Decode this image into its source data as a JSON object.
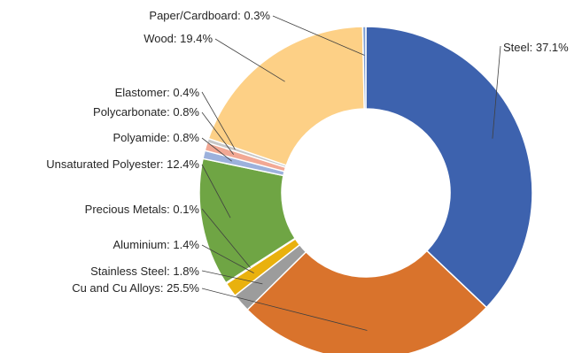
{
  "chart_data": {
    "type": "pie",
    "variant": "donut",
    "start_angle_deg": 0,
    "direction": "clockwise",
    "legend": "none",
    "slices": [
      {
        "label": "Steel",
        "value": 37.1,
        "text": "Steel: 37.1%",
        "color": "#3D62AE"
      },
      {
        "label": "Cu and Cu Alloys",
        "value": 25.5,
        "text": "Cu and Cu Alloys: 25.5%",
        "color": "#D9732C"
      },
      {
        "label": "Stainless Steel",
        "value": 1.8,
        "text": "Stainless Steel: 1.8%",
        "color": "#9C9C9C"
      },
      {
        "label": "Aluminium",
        "value": 1.4,
        "text": "Aluminium: 1.4%",
        "color": "#E9B10E"
      },
      {
        "label": "Precious Metals",
        "value": 0.1,
        "text": "Precious Metals: 0.1%",
        "color": "#5C88C6"
      },
      {
        "label": "Unsaturated Polyester",
        "value": 12.4,
        "text": "Unsaturated Polyester: 12.4%",
        "color": "#6FA544"
      },
      {
        "label": "Polyamide",
        "value": 0.8,
        "text": "Polyamide: 0.8%",
        "color": "#9CB1DC"
      },
      {
        "label": "Polycarbonate",
        "value": 0.8,
        "text": "Polycarbonate: 0.8%",
        "color": "#F2A894"
      },
      {
        "label": "Elastomer",
        "value": 0.4,
        "text": "Elastomer: 0.4%",
        "color": "#C7C7C7"
      },
      {
        "label": "Wood",
        "value": 19.4,
        "text": "Wood: 19.4%",
        "color": "#FDD086"
      },
      {
        "label": "Paper/Cardboard",
        "value": 0.3,
        "text": "Paper/Cardboard: 0.3%",
        "color": "#7B9CD3"
      }
    ]
  }
}
